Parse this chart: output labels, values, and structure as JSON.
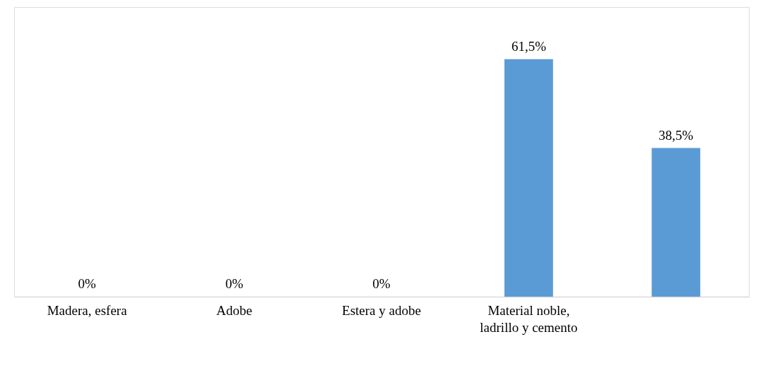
{
  "chart_data": {
    "type": "bar",
    "categories": [
      "Madera, esfera",
      "Adobe",
      "Estera y adobe",
      "Material noble, ladrillo y cemento",
      null
    ],
    "values": [
      0,
      0,
      0,
      61.5,
      38.5
    ],
    "color": "#5b9bd5",
    "value_labels": [
      "0%",
      "0%",
      "0%",
      "61,5%",
      "38,5%"
    ],
    "ylim": [
      0,
      75
    ],
    "tick_labels": "x",
    "grid": false
  }
}
